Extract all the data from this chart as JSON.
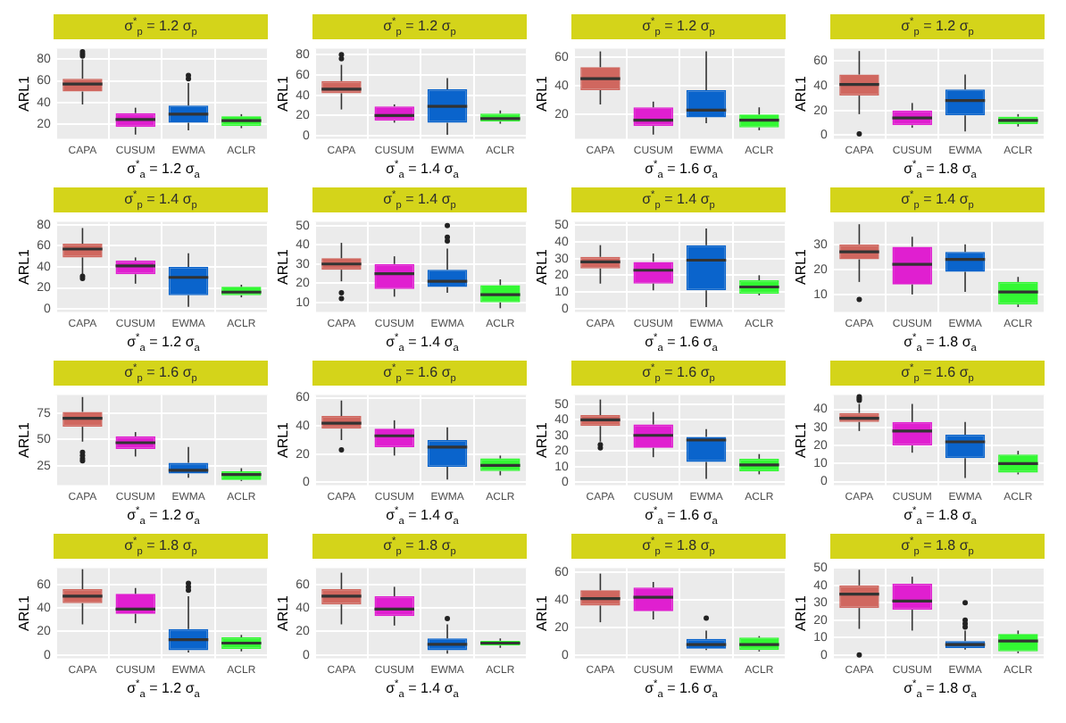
{
  "chart_data": [
    {
      "type": "box",
      "title": "σ$^{*}$$_{p}$ = 1.2 σ$_{p}$",
      "xlabel": "σ$^{*}$$_{a}$ = 1.2 σ$_{a}$",
      "ylabel": "ARL1",
      "categories": [
        "CAPA",
        "CUSUM",
        "EWMA",
        "ACLR"
      ],
      "colors": [
        "#d0675f",
        "#e01fd0",
        "#0a64cc",
        "#33f833"
      ],
      "ylim": [
        6,
        90
      ],
      "yticks": [
        20,
        40,
        60,
        80
      ],
      "grid": true,
      "boxes": [
        {
          "low": 38,
          "q1": 50,
          "median": 57,
          "q3": 62,
          "high": 80,
          "outliers": [
            83,
            85,
            87
          ]
        },
        {
          "low": 10,
          "q1": 17,
          "median": 24,
          "q3": 30,
          "high": 35
        },
        {
          "low": 14,
          "q1": 21,
          "median": 29,
          "q3": 37,
          "high": 58,
          "outliers": [
            62,
            65
          ]
        },
        {
          "low": 16,
          "q1": 18,
          "median": 23,
          "q3": 27,
          "high": 29
        }
      ]
    },
    {
      "type": "box",
      "title": "σ$^{*}$$_{p}$ = 1.2 σ$_{p}$",
      "xlabel": "σ$^{*}$$_{a}$ = 1.4 σ$_{a}$",
      "ylabel": "ARL1",
      "categories": [
        "CAPA",
        "CUSUM",
        "EWMA",
        "ACLR"
      ],
      "colors": [
        "#d0675f",
        "#e01fd0",
        "#0a64cc",
        "#33f833"
      ],
      "ylim": [
        -3,
        86
      ],
      "yticks": [
        0,
        20,
        40,
        60,
        80
      ],
      "grid": true,
      "boxes": [
        {
          "low": 26,
          "q1": 42,
          "median": 46,
          "q3": 54,
          "high": 70,
          "outliers": [
            76,
            80
          ]
        },
        {
          "low": 13,
          "q1": 15,
          "median": 20,
          "q3": 29,
          "high": 31
        },
        {
          "low": 1,
          "q1": 13,
          "median": 29,
          "q3": 46,
          "high": 57
        },
        {
          "low": 12,
          "q1": 14,
          "median": 17,
          "q3": 22,
          "high": 25
        }
      ]
    },
    {
      "type": "box",
      "title": "σ$^{*}$$_{p}$ = 1.2 σ$_{p}$",
      "xlabel": "σ$^{*}$$_{a}$ = 1.6 σ$_{a}$",
      "ylabel": "ARL1",
      "categories": [
        "CAPA",
        "CUSUM",
        "EWMA",
        "ACLR"
      ],
      "colors": [
        "#d0675f",
        "#e01fd0",
        "#0a64cc",
        "#33f833"
      ],
      "ylim": [
        3,
        66
      ],
      "yticks": [
        20,
        40,
        60
      ],
      "grid": true,
      "boxes": [
        {
          "low": 27,
          "q1": 37,
          "median": 45,
          "q3": 53,
          "high": 64
        },
        {
          "low": 6,
          "q1": 12,
          "median": 16,
          "q3": 25,
          "high": 29
        },
        {
          "low": 14,
          "q1": 18,
          "median": 23,
          "q3": 37,
          "high": 64
        },
        {
          "low": 9,
          "q1": 11,
          "median": 16,
          "q3": 20,
          "high": 25
        }
      ]
    },
    {
      "type": "box",
      "title": "σ$^{*}$$_{p}$ = 1.2 σ$_{p}$",
      "xlabel": "σ$^{*}$$_{a}$ = 1.8 σ$_{a}$",
      "ylabel": "ARL1",
      "categories": [
        "CAPA",
        "CUSUM",
        "EWMA",
        "ACLR"
      ],
      "colors": [
        "#d0675f",
        "#e01fd0",
        "#0a64cc",
        "#33f833"
      ],
      "ylim": [
        -3,
        70
      ],
      "yticks": [
        0,
        20,
        40,
        60
      ],
      "grid": true,
      "boxes": [
        {
          "low": 17,
          "q1": 32,
          "median": 41,
          "q3": 49,
          "high": 68,
          "outliers": [
            1
          ]
        },
        {
          "low": 6,
          "q1": 8,
          "median": 14,
          "q3": 20,
          "high": 26
        },
        {
          "low": 3,
          "q1": 16,
          "median": 28,
          "q3": 37,
          "high": 49
        },
        {
          "low": 7,
          "q1": 9,
          "median": 12,
          "q3": 15,
          "high": 17
        }
      ]
    },
    {
      "type": "box",
      "title": "σ$^{*}$$_{p}$ = 1.4 σ$_{p}$",
      "xlabel": "σ$^{*}$$_{a}$ = 1.2 σ$_{a}$",
      "ylabel": "ARL1",
      "categories": [
        "CAPA",
        "CUSUM",
        "EWMA",
        "ACLR"
      ],
      "colors": [
        "#d0675f",
        "#e01fd0",
        "#0a64cc",
        "#33f833"
      ],
      "ylim": [
        -3,
        83
      ],
      "yticks": [
        0,
        20,
        40,
        60,
        80
      ],
      "grid": true,
      "boxes": [
        {
          "low": 33,
          "q1": 49,
          "median": 57,
          "q3": 62,
          "high": 77,
          "outliers": [
            29,
            31
          ]
        },
        {
          "low": 24,
          "q1": 33,
          "median": 41,
          "q3": 46,
          "high": 49
        },
        {
          "low": 2,
          "q1": 13,
          "median": 30,
          "q3": 40,
          "high": 53
        },
        {
          "low": 11,
          "q1": 13,
          "median": 16,
          "q3": 21,
          "high": 23
        }
      ]
    },
    {
      "type": "box",
      "title": "σ$^{*}$$_{p}$ = 1.4 σ$_{p}$",
      "xlabel": "σ$^{*}$$_{a}$ = 1.4 σ$_{a}$",
      "ylabel": "ARL1",
      "categories": [
        "CAPA",
        "CUSUM",
        "EWMA",
        "ACLR"
      ],
      "colors": [
        "#d0675f",
        "#e01fd0",
        "#0a64cc",
        "#33f833"
      ],
      "ylim": [
        5,
        52
      ],
      "yticks": [
        10,
        20,
        30,
        40,
        50
      ],
      "grid": true,
      "boxes": [
        {
          "low": 21,
          "q1": 27,
          "median": 30,
          "q3": 33,
          "high": 41,
          "outliers": [
            12,
            15
          ]
        },
        {
          "low": 13,
          "q1": 17,
          "median": 25,
          "q3": 30,
          "high": 34
        },
        {
          "low": 15,
          "q1": 18,
          "median": 21,
          "q3": 27,
          "high": 38,
          "outliers": [
            42,
            44,
            50
          ]
        },
        {
          "low": 7,
          "q1": 10,
          "median": 14,
          "q3": 19,
          "high": 22
        }
      ]
    },
    {
      "type": "box",
      "title": "σ$^{*}$$_{p}$ = 1.4 σ$_{p}$",
      "xlabel": "σ$^{*}$$_{a}$ = 1.6 σ$_{a}$",
      "ylabel": "ARL1",
      "categories": [
        "CAPA",
        "CUSUM",
        "EWMA",
        "ACLR"
      ],
      "colors": [
        "#d0675f",
        "#e01fd0",
        "#0a64cc",
        "#33f833"
      ],
      "ylim": [
        -2,
        52
      ],
      "yticks": [
        0,
        10,
        20,
        30,
        40,
        50
      ],
      "grid": true,
      "boxes": [
        {
          "low": 15,
          "q1": 24,
          "median": 28,
          "q3": 31,
          "high": 38
        },
        {
          "low": 11,
          "q1": 15,
          "median": 23,
          "q3": 28,
          "high": 33
        },
        {
          "low": 1,
          "q1": 11,
          "median": 29,
          "q3": 38,
          "high": 48
        },
        {
          "low": 8,
          "q1": 9,
          "median": 13,
          "q3": 17,
          "high": 20
        }
      ]
    },
    {
      "type": "box",
      "title": "σ$^{*}$$_{p}$ = 1.4 σ$_{p}$",
      "xlabel": "σ$^{*}$$_{a}$ = 1.8 σ$_{a}$",
      "ylabel": "ARL1",
      "categories": [
        "CAPA",
        "CUSUM",
        "EWMA",
        "ACLR"
      ],
      "colors": [
        "#d0675f",
        "#e01fd0",
        "#0a64cc",
        "#33f833"
      ],
      "ylim": [
        3,
        39
      ],
      "yticks": [
        10,
        20,
        30
      ],
      "grid": true,
      "boxes": [
        {
          "low": 15,
          "q1": 24,
          "median": 27,
          "q3": 30,
          "high": 38,
          "outliers": [
            8
          ]
        },
        {
          "low": 10,
          "q1": 14,
          "median": 22,
          "q3": 29,
          "high": 33
        },
        {
          "low": 11,
          "q1": 19,
          "median": 24,
          "q3": 27,
          "high": 30
        },
        {
          "low": 5,
          "q1": 6,
          "median": 11,
          "q3": 15,
          "high": 17
        }
      ]
    },
    {
      "type": "box",
      "title": "σ$^{*}$$_{p}$ = 1.6 σ$_{p}$",
      "xlabel": "σ$^{*}$$_{a}$ = 1.2 σ$_{a}$",
      "ylabel": "ARL1",
      "categories": [
        "CAPA",
        "CUSUM",
        "EWMA",
        "ACLR"
      ],
      "colors": [
        "#d0675f",
        "#e01fd0",
        "#0a64cc",
        "#33f833"
      ],
      "ylim": [
        7,
        92
      ],
      "yticks": [
        25,
        50,
        75
      ],
      "grid": true,
      "boxes": [
        {
          "low": 48,
          "q1": 62,
          "median": 70,
          "q3": 76,
          "high": 90,
          "outliers": [
            30,
            32,
            35,
            38
          ]
        },
        {
          "low": 34,
          "q1": 41,
          "median": 47,
          "q3": 53,
          "high": 57
        },
        {
          "low": 14,
          "q1": 18,
          "median": 21,
          "q3": 28,
          "high": 43
        },
        {
          "low": 11,
          "q1": 12,
          "median": 17,
          "q3": 20,
          "high": 23
        }
      ]
    },
    {
      "type": "box",
      "title": "σ$^{*}$$_{p}$ = 1.6 σ$_{p}$",
      "xlabel": "σ$^{*}$$_{a}$ = 1.4 σ$_{a}$",
      "ylabel": "ARL1",
      "categories": [
        "CAPA",
        "CUSUM",
        "EWMA",
        "ACLR"
      ],
      "colors": [
        "#d0675f",
        "#e01fd0",
        "#0a64cc",
        "#33f833"
      ],
      "ylim": [
        -2,
        62
      ],
      "yticks": [
        0,
        20,
        40,
        60
      ],
      "grid": true,
      "boxes": [
        {
          "low": 30,
          "q1": 38,
          "median": 42,
          "q3": 47,
          "high": 58,
          "outliers": [
            23
          ]
        },
        {
          "low": 19,
          "q1": 25,
          "median": 33,
          "q3": 38,
          "high": 44
        },
        {
          "low": 2,
          "q1": 11,
          "median": 25,
          "q3": 30,
          "high": 39
        },
        {
          "low": 5,
          "q1": 8,
          "median": 12,
          "q3": 17,
          "high": 19
        }
      ]
    },
    {
      "type": "box",
      "title": "σ$^{*}$$_{p}$ = 1.6 σ$_{p}$",
      "xlabel": "σ$^{*}$$_{a}$ = 1.6 σ$_{a}$",
      "ylabel": "ARL1",
      "categories": [
        "CAPA",
        "CUSUM",
        "EWMA",
        "ACLR"
      ],
      "colors": [
        "#d0675f",
        "#e01fd0",
        "#0a64cc",
        "#33f833"
      ],
      "ylim": [
        -2,
        56
      ],
      "yticks": [
        0,
        10,
        20,
        30,
        40,
        50
      ],
      "grid": true,
      "boxes": [
        {
          "low": 26,
          "q1": 36,
          "median": 40,
          "q3": 43,
          "high": 53,
          "outliers": [
            22,
            24
          ]
        },
        {
          "low": 16,
          "q1": 22,
          "median": 30,
          "q3": 37,
          "high": 45
        },
        {
          "low": 2,
          "q1": 13,
          "median": 27,
          "q3": 29,
          "high": 34
        },
        {
          "low": 5,
          "q1": 7,
          "median": 11,
          "q3": 15,
          "high": 18
        }
      ]
    },
    {
      "type": "box",
      "title": "σ$^{*}$$_{p}$ = 1.6 σ$_{p}$",
      "xlabel": "σ$^{*}$$_{a}$ = 1.8 σ$_{a}$",
      "ylabel": "ARL1",
      "categories": [
        "CAPA",
        "CUSUM",
        "EWMA",
        "ACLR"
      ],
      "colors": [
        "#d0675f",
        "#e01fd0",
        "#0a64cc",
        "#33f833"
      ],
      "ylim": [
        -2,
        48
      ],
      "yticks": [
        0,
        10,
        20,
        30,
        40
      ],
      "grid": true,
      "boxes": [
        {
          "low": 28,
          "q1": 33,
          "median": 35,
          "q3": 38,
          "high": 43,
          "outliers": [
            45,
            46,
            47
          ]
        },
        {
          "low": 16,
          "q1": 20,
          "median": 28,
          "q3": 33,
          "high": 43
        },
        {
          "low": 2,
          "q1": 13,
          "median": 22,
          "q3": 26,
          "high": 33
        },
        {
          "low": 4,
          "q1": 5,
          "median": 10,
          "q3": 15,
          "high": 17
        }
      ]
    },
    {
      "type": "box",
      "title": "σ$^{*}$$_{p}$ = 1.8 σ$_{p}$",
      "xlabel": "σ$^{*}$$_{a}$ = 1.2 σ$_{a}$",
      "ylabel": "ARL1",
      "categories": [
        "CAPA",
        "CUSUM",
        "EWMA",
        "ACLR"
      ],
      "colors": [
        "#d0675f",
        "#e01fd0",
        "#0a64cc",
        "#33f833"
      ],
      "ylim": [
        -3,
        74
      ],
      "yticks": [
        0,
        20,
        40,
        60
      ],
      "grid": true,
      "boxes": [
        {
          "low": 26,
          "q1": 44,
          "median": 50,
          "q3": 56,
          "high": 73
        },
        {
          "low": 27,
          "q1": 35,
          "median": 39,
          "q3": 52,
          "high": 57
        },
        {
          "low": 2,
          "q1": 4,
          "median": 13,
          "q3": 22,
          "high": 50,
          "outliers": [
            55,
            58,
            61
          ]
        },
        {
          "low": 3,
          "q1": 5,
          "median": 10,
          "q3": 15,
          "high": 17
        }
      ]
    },
    {
      "type": "box",
      "title": "σ$^{*}$$_{p}$ = 1.8 σ$_{p}$",
      "xlabel": "σ$^{*}$$_{a}$ = 1.4 σ$_{a}$",
      "ylabel": "ARL1",
      "categories": [
        "CAPA",
        "CUSUM",
        "EWMA",
        "ACLR"
      ],
      "colors": [
        "#d0675f",
        "#e01fd0",
        "#0a64cc",
        "#33f833"
      ],
      "ylim": [
        -3,
        74
      ],
      "yticks": [
        0,
        20,
        40,
        60
      ],
      "grid": true,
      "boxes": [
        {
          "low": 26,
          "q1": 43,
          "median": 50,
          "q3": 56,
          "high": 70
        },
        {
          "low": 25,
          "q1": 33,
          "median": 39,
          "q3": 50,
          "high": 58
        },
        {
          "low": 1,
          "q1": 4,
          "median": 9,
          "q3": 14,
          "high": 26,
          "outliers": [
            31
          ]
        },
        {
          "low": 6,
          "q1": 8,
          "median": 10,
          "q3": 12,
          "high": 14
        }
      ]
    },
    {
      "type": "box",
      "title": "σ$^{*}$$_{p}$ = 1.8 σ$_{p}$",
      "xlabel": "σ$^{*}$$_{a}$ = 1.6 σ$_{a}$",
      "ylabel": "ARL1",
      "categories": [
        "CAPA",
        "CUSUM",
        "EWMA",
        "ACLR"
      ],
      "colors": [
        "#d0675f",
        "#e01fd0",
        "#0a64cc",
        "#33f833"
      ],
      "ylim": [
        -2,
        63
      ],
      "yticks": [
        0,
        20,
        40,
        60
      ],
      "grid": true,
      "boxes": [
        {
          "low": 24,
          "q1": 36,
          "median": 41,
          "q3": 47,
          "high": 59
        },
        {
          "low": 26,
          "q1": 32,
          "median": 42,
          "q3": 49,
          "high": 53
        },
        {
          "low": 4,
          "q1": 5,
          "median": 8,
          "q3": 12,
          "high": 18,
          "outliers": [
            27
          ]
        },
        {
          "low": 3,
          "q1": 4,
          "median": 8,
          "q3": 13,
          "high": 14
        }
      ]
    },
    {
      "type": "box",
      "title": "σ$^{*}$$_{p}$ = 1.8 σ$_{p}$",
      "xlabel": "σ$^{*}$$_{a}$ = 1.8 σ$_{a}$",
      "ylabel": "ARL1",
      "categories": [
        "CAPA",
        "CUSUM",
        "EWMA",
        "ACLR"
      ],
      "colors": [
        "#d0675f",
        "#e01fd0",
        "#0a64cc",
        "#33f833"
      ],
      "ylim": [
        -2,
        50
      ],
      "yticks": [
        0,
        10,
        20,
        30,
        40,
        50
      ],
      "grid": true,
      "boxes": [
        {
          "low": 15,
          "q1": 27,
          "median": 35,
          "q3": 40,
          "high": 49,
          "outliers": [
            0
          ]
        },
        {
          "low": 14,
          "q1": 26,
          "median": 31,
          "q3": 41,
          "high": 45
        },
        {
          "low": 3,
          "q1": 4,
          "median": 6,
          "q3": 8,
          "high": 14,
          "outliers": [
            16,
            18,
            20,
            30
          ]
        },
        {
          "low": 1,
          "q1": 2,
          "median": 8,
          "q3": 12,
          "high": 14
        }
      ]
    }
  ]
}
